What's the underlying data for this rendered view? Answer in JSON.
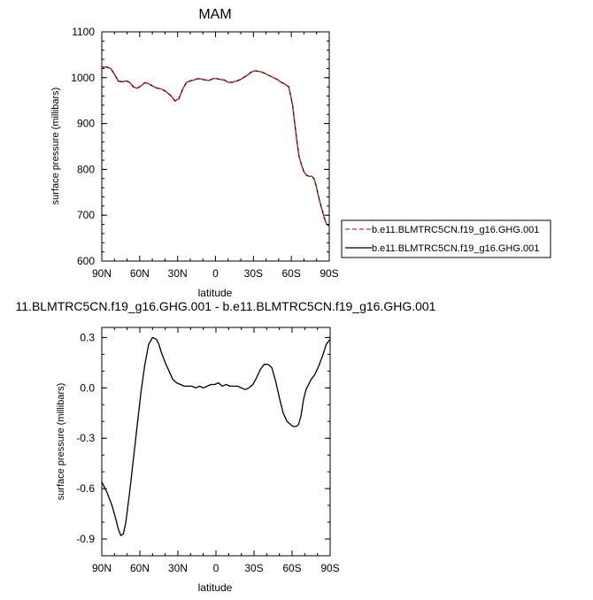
{
  "chart_data": [
    {
      "type": "line",
      "title": "MAM",
      "xlabel": "latitude",
      "ylabel": "surface pressure (millibars)",
      "xlim": [
        90,
        -90
      ],
      "ylim": [
        600,
        1100
      ],
      "xticks": [
        "90N",
        "60N",
        "30N",
        "0",
        "30S",
        "60S",
        "90S"
      ],
      "yticks": [
        "600",
        "700",
        "800",
        "900",
        "1000",
        "1100"
      ],
      "legend_position": "right",
      "series": [
        {
          "name": "b.e11.BLMTRC5CN.f19_g16.GHG.001",
          "color": "#d62728",
          "style": "dashed",
          "x": [
            90,
            86,
            83,
            80,
            77,
            74,
            71,
            68,
            65,
            62,
            59,
            56,
            53,
            50,
            47,
            44,
            41,
            38,
            35,
            32,
            29,
            26,
            23,
            20,
            17,
            14,
            11,
            8,
            5,
            2,
            -1,
            -4,
            -7,
            -10,
            -13,
            -16,
            -19,
            -22,
            -25,
            -28,
            -31,
            -34,
            -37,
            -40,
            -43,
            -46,
            -49,
            -52,
            -55,
            -58,
            -61,
            -64,
            -66,
            -68,
            -70,
            -72,
            -74,
            -76,
            -78,
            -80,
            -82,
            -84,
            -86,
            -88,
            -90
          ],
          "y": [
            1022,
            1023,
            1020,
            1008,
            992,
            990,
            993,
            990,
            980,
            977,
            982,
            989,
            987,
            982,
            978,
            976,
            973,
            967,
            960,
            949,
            954,
            975,
            990,
            993,
            995,
            998,
            997,
            995,
            994,
            998,
            998,
            996,
            995,
            990,
            990,
            992,
            995,
            1000,
            1005,
            1012,
            1015,
            1014,
            1012,
            1008,
            1004,
            1000,
            996,
            990,
            986,
            980,
            940,
            870,
            830,
            810,
            795,
            787,
            785,
            785,
            780,
            760,
            735,
            715,
            695,
            680,
            677
          ]
        },
        {
          "name": "b.e11.BLMTRC5CN.f19_g16.GHG.001",
          "color": "#000000",
          "style": "solid",
          "x": [
            90,
            86,
            83,
            80,
            77,
            74,
            71,
            68,
            65,
            62,
            59,
            56,
            53,
            50,
            47,
            44,
            41,
            38,
            35,
            32,
            29,
            26,
            23,
            20,
            17,
            14,
            11,
            8,
            5,
            2,
            -1,
            -4,
            -7,
            -10,
            -13,
            -16,
            -19,
            -22,
            -25,
            -28,
            -31,
            -34,
            -37,
            -40,
            -43,
            -46,
            -49,
            -52,
            -55,
            -58,
            -61,
            -64,
            -66,
            -68,
            -70,
            -72,
            -74,
            -76,
            -78,
            -80,
            -82,
            -84,
            -86,
            -88,
            -90
          ],
          "y": [
            1023,
            1023,
            1020,
            1008,
            993,
            991,
            993,
            990,
            980,
            977,
            982,
            989,
            987,
            982,
            978,
            976,
            973,
            967,
            960,
            949,
            954,
            975,
            990,
            993,
            995,
            998,
            997,
            995,
            994,
            998,
            998,
            996,
            995,
            990,
            990,
            992,
            995,
            1000,
            1005,
            1012,
            1015,
            1014,
            1012,
            1008,
            1004,
            1000,
            996,
            990,
            986,
            980,
            940,
            870,
            830,
            810,
            795,
            787,
            785,
            785,
            780,
            760,
            735,
            715,
            695,
            680,
            677
          ]
        }
      ]
    },
    {
      "type": "line",
      "title": "11.BLMTRC5CN.f19_g16.GHG.001 - b.e11.BLMTRC5CN.f19_g16.GHG.001",
      "xlabel": "latitude",
      "ylabel": "surface pressure (millibars)",
      "xlim": [
        90,
        -90
      ],
      "ylim": [
        -1.0,
        0.36
      ],
      "xticks": [
        "90N",
        "60N",
        "30N",
        "0",
        "30S",
        "60S",
        "90S"
      ],
      "yticks": [
        "-0.9",
        "-0.6",
        "-0.3",
        "0.0",
        "0.3"
      ],
      "series": [
        {
          "color": "#000000",
          "style": "solid",
          "x": [
            90,
            86,
            82,
            79,
            77,
            75,
            73,
            71,
            68,
            65,
            62,
            59,
            56,
            53,
            50,
            47,
            45,
            43,
            40,
            37,
            34,
            31,
            28,
            25,
            22,
            19,
            16,
            13,
            10,
            7,
            4,
            1,
            -2,
            -5,
            -8,
            -11,
            -14,
            -17,
            -20,
            -23,
            -26,
            -29,
            -32,
            -35,
            -38,
            -41,
            -44,
            -47,
            -50,
            -53,
            -56,
            -59,
            -61,
            -63,
            -65,
            -67,
            -69,
            -71,
            -73,
            -75,
            -78,
            -81,
            -84,
            -87,
            -90
          ],
          "y": [
            -0.56,
            -0.62,
            -0.7,
            -0.78,
            -0.84,
            -0.88,
            -0.87,
            -0.8,
            -0.62,
            -0.42,
            -0.22,
            -0.02,
            0.14,
            0.26,
            0.3,
            0.29,
            0.26,
            0.21,
            0.15,
            0.1,
            0.05,
            0.03,
            0.02,
            0.01,
            0.01,
            0.01,
            0.0,
            0.01,
            0.0,
            0.01,
            0.02,
            0.02,
            0.03,
            0.01,
            0.02,
            0.01,
            0.01,
            0.01,
            0.0,
            -0.01,
            0.0,
            0.02,
            0.06,
            0.11,
            0.14,
            0.14,
            0.12,
            0.04,
            -0.06,
            -0.15,
            -0.2,
            -0.22,
            -0.23,
            -0.23,
            -0.22,
            -0.17,
            -0.07,
            -0.01,
            0.02,
            0.05,
            0.08,
            0.13,
            0.19,
            0.26,
            0.29
          ]
        }
      ]
    }
  ]
}
